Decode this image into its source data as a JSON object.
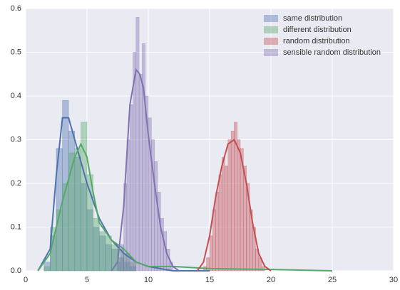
{
  "chart_data": {
    "type": "histogram",
    "xlim": [
      0,
      30
    ],
    "xticks": [
      0,
      5,
      10,
      15,
      20,
      25,
      30
    ],
    "ylim": [
      0,
      0.6
    ],
    "yticks": [
      {
        "value": 0,
        "label": "0.0"
      },
      0.1,
      0.2,
      0.3,
      0.4,
      0.5,
      0.6
    ],
    "grid": true,
    "legend": "upper right",
    "series": [
      {
        "name": "same distribution",
        "color": "#4c72b0",
        "bins": [
          1.5,
          2,
          2.5,
          3,
          3.5,
          4,
          4.5,
          5,
          5.5,
          6,
          6.5,
          7,
          7.5,
          8,
          8.5,
          9
        ],
        "values": [
          0.02,
          0.08,
          0.28,
          0.39,
          0.32,
          0.26,
          0.2,
          0.14,
          0.1,
          0.08,
          0.06,
          0.05,
          0.03,
          0.02,
          0.01
        ],
        "kde": {
          "x": [
            1,
            2,
            2.5,
            3,
            3.5,
            4,
            5,
            6,
            7,
            8,
            9,
            10,
            12,
            15
          ],
          "y": [
            0,
            0.05,
            0.22,
            0.35,
            0.35,
            0.3,
            0.2,
            0.12,
            0.07,
            0.04,
            0.02,
            0.01,
            0,
            0
          ]
        }
      },
      {
        "name": "different distribution",
        "color": "#55a868",
        "bins": [
          1.5,
          2,
          2.5,
          3,
          3.5,
          4,
          4.5,
          5,
          5.5,
          6,
          6.5,
          7,
          7.5,
          8,
          8.5,
          9
        ],
        "values": [
          0.01,
          0.1,
          0.14,
          0.2,
          0.27,
          0.28,
          0.34,
          0.22,
          0.12,
          0.09,
          0.08,
          0.06,
          0.05,
          0.04,
          0.02
        ],
        "kde": {
          "x": [
            1,
            2,
            3,
            4,
            4.5,
            5,
            5.5,
            6,
            7,
            8,
            9,
            10,
            12,
            15,
            20,
            25
          ],
          "y": [
            0,
            0.04,
            0.16,
            0.26,
            0.29,
            0.26,
            0.18,
            0.11,
            0.07,
            0.05,
            0.02,
            0.01,
            0.01,
            0.005,
            0.003,
            0
          ]
        }
      },
      {
        "name": "random distribution",
        "color": "#c44e52",
        "bins": [
          14.5,
          14.75,
          15,
          15.25,
          15.5,
          15.75,
          16,
          16.25,
          16.5,
          16.75,
          17,
          17.25,
          17.5,
          17.75,
          18,
          18.25,
          18.5,
          18.75,
          19,
          19.25,
          19.5
        ],
        "values": [
          0.01,
          0.03,
          0.08,
          0.14,
          0.18,
          0.22,
          0.26,
          0.24,
          0.3,
          0.32,
          0.34,
          0.3,
          0.28,
          0.24,
          0.2,
          0.14,
          0.1,
          0.05,
          0.03,
          0.01
        ],
        "kde": {
          "x": [
            14,
            14.5,
            15,
            15.5,
            16,
            16.5,
            17,
            17.5,
            18,
            18.5,
            19,
            19.5,
            20
          ],
          "y": [
            0,
            0.02,
            0.08,
            0.17,
            0.24,
            0.29,
            0.3,
            0.27,
            0.2,
            0.11,
            0.04,
            0.01,
            0
          ]
        }
      },
      {
        "name": "sensible random distribution",
        "color": "#8172b2",
        "bins": [
          7.5,
          7.75,
          8,
          8.25,
          8.5,
          8.75,
          9,
          9.25,
          9.5,
          9.75,
          10,
          10.25,
          10.5,
          10.75,
          11,
          11.25,
          11.5,
          11.75,
          12
        ],
        "values": [
          0.02,
          0.06,
          0.2,
          0.3,
          0.38,
          0.5,
          0.58,
          0.45,
          0.52,
          0.4,
          0.35,
          0.3,
          0.25,
          0.18,
          0.12,
          0.09,
          0.05,
          0.02
        ],
        "kde": {
          "x": [
            7,
            7.5,
            8,
            8.5,
            9,
            9.3,
            9.6,
            10,
            10.5,
            11,
            11.5,
            12,
            12.5
          ],
          "y": [
            0,
            0.02,
            0.15,
            0.38,
            0.46,
            0.45,
            0.42,
            0.31,
            0.2,
            0.1,
            0.04,
            0.01,
            0
          ]
        }
      }
    ]
  }
}
